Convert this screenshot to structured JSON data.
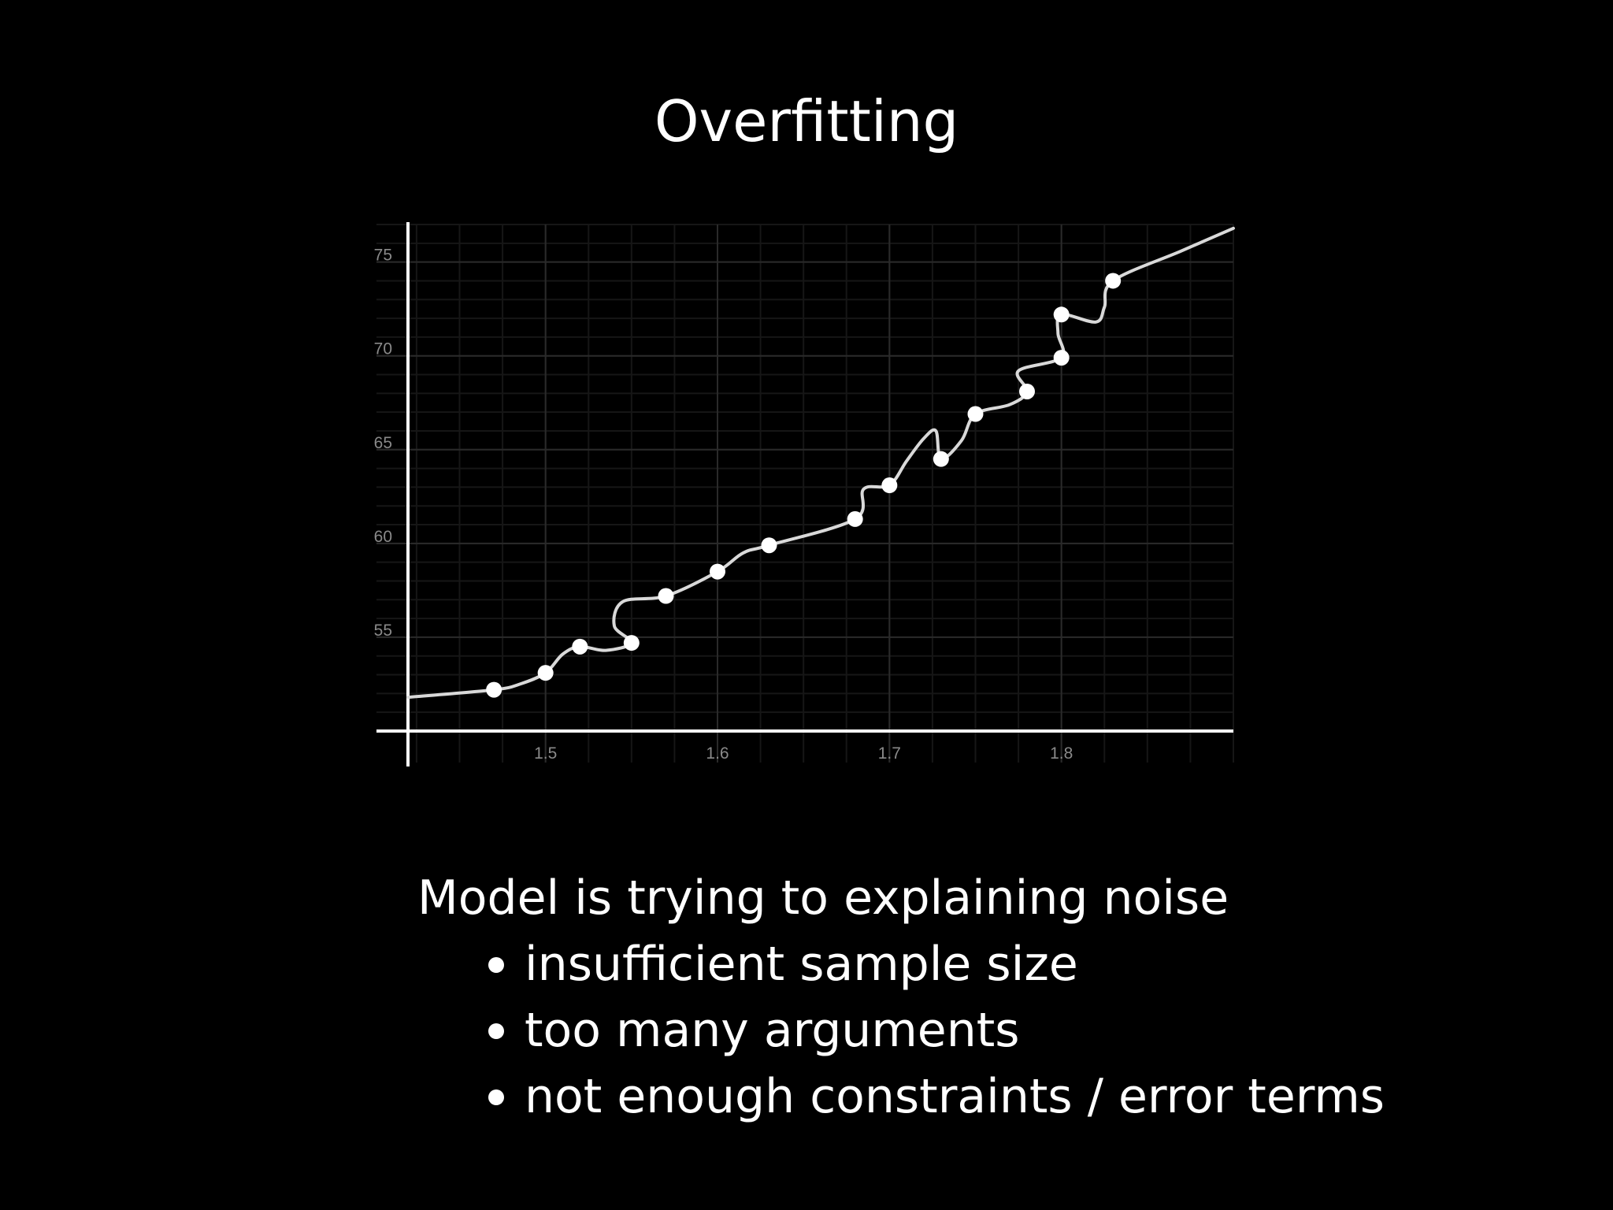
{
  "slide": {
    "title": "Overfitting",
    "heading": "Model is trying to explaining noise",
    "bullets": [
      "insufficient sample size",
      "too many arguments",
      "not enough constraints / error terms"
    ]
  },
  "colors": {
    "background": "#000000",
    "text": "#ffffff",
    "grid": "#2a2a2a",
    "tick_label": "#8a8a8a",
    "curve": "#d9d9d9",
    "point": "#ffffff"
  },
  "chart_data": {
    "type": "scatter",
    "title": "",
    "xlabel": "",
    "ylabel": "",
    "xlim": [
      1.42,
      1.9
    ],
    "ylim": [
      50,
      77
    ],
    "x_ticks": [
      1.5,
      1.6,
      1.7,
      1.8
    ],
    "y_ticks": [
      55,
      60,
      65,
      70,
      75
    ],
    "grid": true,
    "points": [
      {
        "x": 1.47,
        "y": 52.2
      },
      {
        "x": 1.5,
        "y": 53.1
      },
      {
        "x": 1.52,
        "y": 54.5
      },
      {
        "x": 1.55,
        "y": 54.7
      },
      {
        "x": 1.57,
        "y": 57.2
      },
      {
        "x": 1.6,
        "y": 58.5
      },
      {
        "x": 1.63,
        "y": 59.9
      },
      {
        "x": 1.68,
        "y": 61.3
      },
      {
        "x": 1.7,
        "y": 63.1
      },
      {
        "x": 1.73,
        "y": 64.5
      },
      {
        "x": 1.75,
        "y": 66.9
      },
      {
        "x": 1.78,
        "y": 68.1
      },
      {
        "x": 1.8,
        "y": 69.9
      },
      {
        "x": 1.8,
        "y": 72.2
      },
      {
        "x": 1.83,
        "y": 74.0
      }
    ],
    "fit_curve": [
      [
        1.42,
        51.8
      ],
      [
        1.47,
        52.2
      ],
      [
        1.485,
        52.5
      ],
      [
        1.5,
        53.1
      ],
      [
        1.51,
        54.1
      ],
      [
        1.52,
        54.5
      ],
      [
        1.535,
        54.3
      ],
      [
        1.55,
        54.7
      ],
      [
        1.54,
        55.6
      ],
      [
        1.545,
        56.9
      ],
      [
        1.57,
        57.2
      ],
      [
        1.6,
        58.5
      ],
      [
        1.615,
        59.5
      ],
      [
        1.63,
        59.9
      ],
      [
        1.68,
        61.3
      ],
      [
        1.685,
        62.9
      ],
      [
        1.7,
        63.1
      ],
      [
        1.71,
        64.4
      ],
      [
        1.72,
        65.6
      ],
      [
        1.727,
        66.0
      ],
      [
        1.73,
        64.5
      ],
      [
        1.742,
        65.5
      ],
      [
        1.75,
        66.9
      ],
      [
        1.77,
        67.4
      ],
      [
        1.78,
        68.1
      ],
      [
        1.775,
        69.2
      ],
      [
        1.8,
        69.9
      ],
      [
        1.798,
        71.2
      ],
      [
        1.8,
        72.2
      ],
      [
        1.82,
        71.8
      ],
      [
        1.825,
        72.6
      ],
      [
        1.83,
        74.0
      ],
      [
        1.87,
        75.6
      ],
      [
        1.9,
        76.8
      ]
    ]
  }
}
